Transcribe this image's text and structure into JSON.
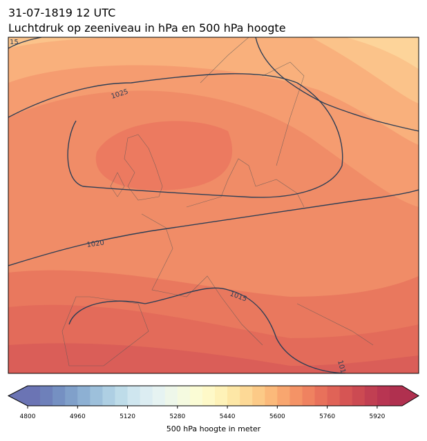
{
  "title": [
    "31-07-1819 12 UTC",
    "Luchtdruk op zeeniveau in hPa en 500 hPa hoogte"
  ],
  "map": {
    "contour_labels": [
      "15",
      "1025",
      "1020",
      "1015",
      "101"
    ]
  },
  "colorbar": {
    "label": "500 hPa hoogte in meter",
    "range": [
      4800,
      6000
    ],
    "ticks": [
      4800,
      4960,
      5120,
      5280,
      5440,
      5600,
      5760,
      5920
    ],
    "colors": [
      "#6b74b4",
      "#6e80ba",
      "#7590c2",
      "#80a0ca",
      "#8db0d3",
      "#9dc0db",
      "#aecfe3",
      "#bedce9",
      "#cfe6ef",
      "#dcedf2",
      "#e6f3f2",
      "#eef7ea",
      "#f5fae0",
      "#fbfcd5",
      "#fef9c8",
      "#fef2b8",
      "#fde7a6",
      "#fdd996",
      "#fcca87",
      "#fbb97a",
      "#f8a66f",
      "#f49366",
      "#ef8260",
      "#e8715b",
      "#e06357",
      "#d65554",
      "#cc4a52",
      "#c13f52",
      "#b83552",
      "#b0304f"
    ]
  }
}
